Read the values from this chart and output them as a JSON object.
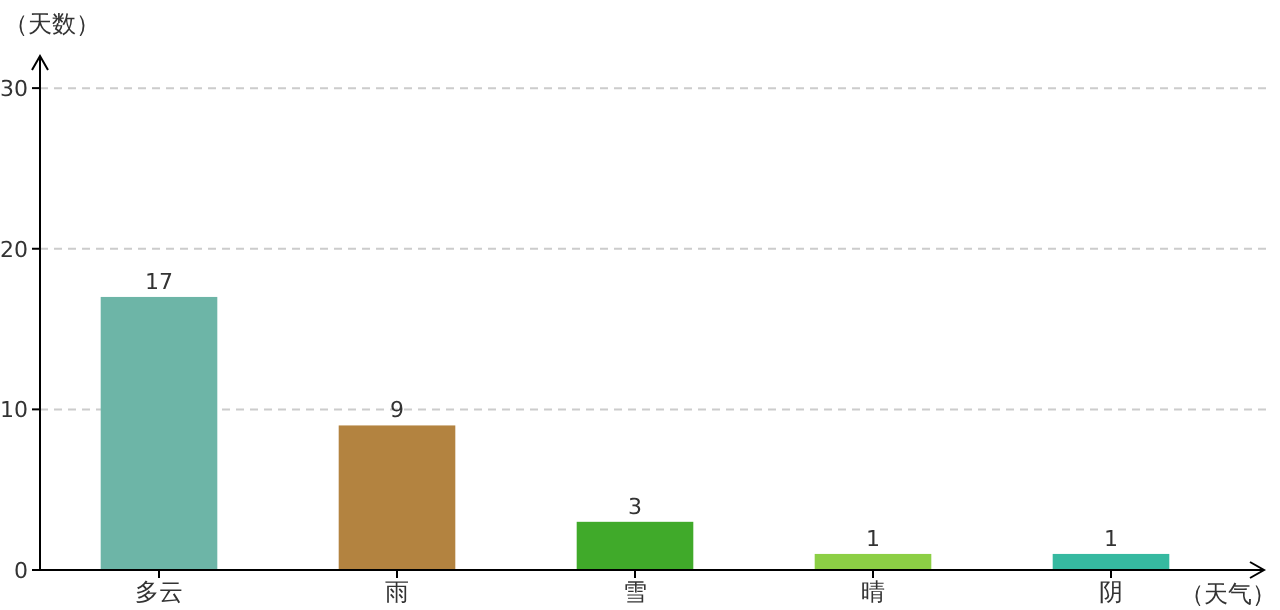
{
  "chart_data": {
    "type": "bar",
    "xlabel": "（天气）",
    "ylabel": "（天数）",
    "categories": [
      "多云",
      "雨",
      "雪",
      "晴",
      "阴"
    ],
    "values": [
      17,
      9,
      3,
      1,
      1
    ],
    "colors": [
      "#6db5a7",
      "#b38340",
      "#40aa2a",
      "#8ccf45",
      "#36b9a0"
    ],
    "ylim": [
      0,
      32
    ],
    "yticks": [
      0,
      10,
      20,
      30
    ],
    "grid": "y",
    "data_labels": true
  }
}
